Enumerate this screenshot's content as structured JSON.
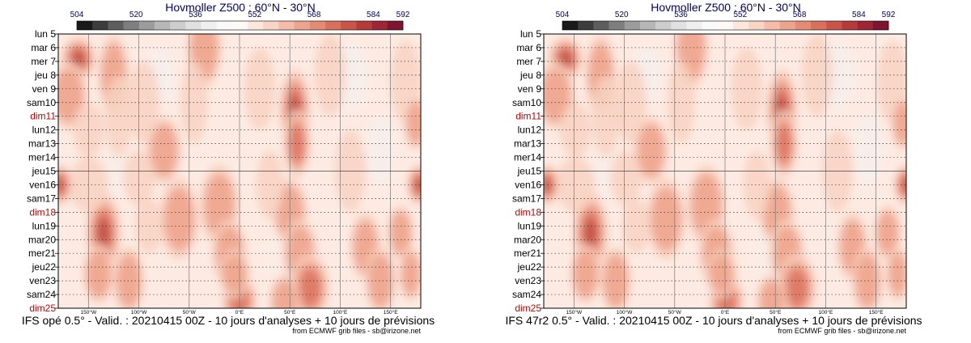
{
  "chart_data": [
    {
      "type": "heatmap",
      "title": "Hovmoller Z500 : 60°N - 30°N",
      "footer": "IFS opé 0.5° - Valid. : 20210415 00Z - 10 jours d'analyses + 10 jours de prévisions",
      "credit": "from ECMWF grib files - sb@irizone.net",
      "colorbar_labels": [
        "504",
        "520",
        "536",
        "552",
        "568",
        "584",
        "592"
      ],
      "colorbar_range": [
        504,
        592
      ],
      "y_labels": [
        "lun 5",
        "mar 6",
        "mer 7",
        "jeu 8",
        "ven 9",
        "sam10",
        "dim11",
        "lun12",
        "mar13",
        "mer14",
        "jeu15",
        "ven16",
        "sam17",
        "dim18",
        "lun19",
        "mar20",
        "mer21",
        "jeu22",
        "ven23",
        "sam24",
        "dim25"
      ],
      "x_labels": [
        "150°W",
        "100°W",
        "50°W",
        "0°E",
        "50°E",
        "100°E",
        "150°E"
      ],
      "x_values": [
        -150,
        -100,
        -50,
        0,
        50,
        100,
        150
      ],
      "xlim": [
        -180,
        180
      ],
      "analysis_forecast_boundary": "jeu15"
    },
    {
      "type": "heatmap",
      "title": "Hovmoller Z500 : 60°N - 30°N",
      "footer": "IFS 47r2 0.5° - Valid. : 20210415 00Z - 10 jours d'analyses + 10 jours de prévisions",
      "credit": "from ECMWF grib files - sb@irizone.net",
      "colorbar_labels": [
        "504",
        "520",
        "536",
        "552",
        "568",
        "584",
        "592"
      ],
      "colorbar_range": [
        504,
        592
      ],
      "y_labels": [
        "lun 5",
        "mar 6",
        "mer 7",
        "jeu 8",
        "ven 9",
        "sam10",
        "dim11",
        "lun12",
        "mar13",
        "mer14",
        "jeu15",
        "ven16",
        "sam17",
        "dim18",
        "lun19",
        "mar20",
        "mer21",
        "jeu22",
        "ven23",
        "sam24",
        "dim25"
      ],
      "x_labels": [
        "150°W",
        "100°W",
        "50°W",
        "0°E",
        "50°E",
        "100°E",
        "150°E"
      ],
      "x_values": [
        -150,
        -100,
        -50,
        0,
        50,
        100,
        150
      ],
      "xlim": [
        -180,
        180
      ],
      "analysis_forecast_boundary": "jeu15"
    }
  ],
  "colorbar_colors": [
    "#1a1a1a",
    "#3c3c3c",
    "#5e5e5e",
    "#7e7e7e",
    "#9c9c9c",
    "#b6b6b6",
    "#cdcdcd",
    "#e0e0e0",
    "#efefef",
    "#f9f9f9",
    "#fff8f4",
    "#fde6dc",
    "#f9d3c4",
    "#f4bca9",
    "#eda48e",
    "#e48b75",
    "#d9705c",
    "#c9554a",
    "#b53b3b",
    "#9c2636",
    "#7e1530"
  ],
  "sunday_color": "#cc0000"
}
